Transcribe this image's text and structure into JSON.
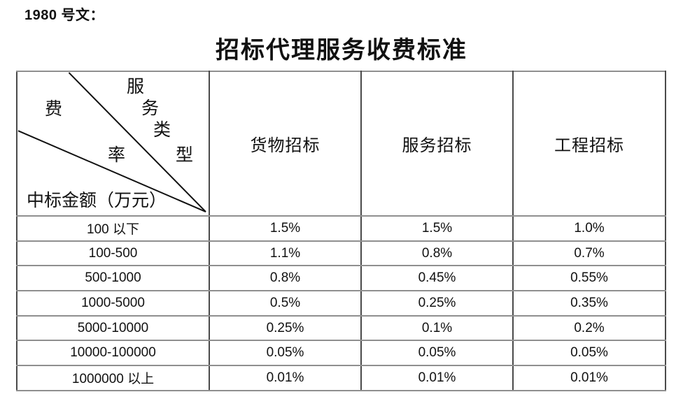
{
  "page": {
    "doc_ref": "1980 号文：",
    "title": "招标代理服务收费标准"
  },
  "table": {
    "corner": {
      "col_axis_chars": [
        "服",
        "务",
        "类",
        "型"
      ],
      "rate_chars": [
        "费",
        "率"
      ],
      "row_axis_label": "中标金额（万元）"
    },
    "columns": [
      "货物招标",
      "服务招标",
      "工程招标"
    ],
    "rows": [
      {
        "label": "100 以下",
        "values": [
          "1.5%",
          "1.5%",
          "1.0%"
        ]
      },
      {
        "label": "100-500",
        "values": [
          "1.1%",
          "0.8%",
          "0.7%"
        ]
      },
      {
        "label": "500-1000",
        "values": [
          "0.8%",
          "0.45%",
          "0.55%"
        ]
      },
      {
        "label": "1000-5000",
        "values": [
          "0.5%",
          "0.25%",
          "0.35%"
        ]
      },
      {
        "label": "5000-10000",
        "values": [
          "0.25%",
          "0.1%",
          "0.2%"
        ]
      },
      {
        "label": "10000-100000",
        "values": [
          "0.05%",
          "0.05%",
          "0.05%"
        ]
      },
      {
        "label": "1000000 以上",
        "values": [
          "0.01%",
          "0.01%",
          "0.01%"
        ]
      }
    ]
  },
  "colors": {
    "background": "#ffffff",
    "text": "#111111",
    "horizontal_border": "#8f8f8f",
    "vertical_border": "#4a4a4a",
    "diagonal_line": "#111111"
  }
}
